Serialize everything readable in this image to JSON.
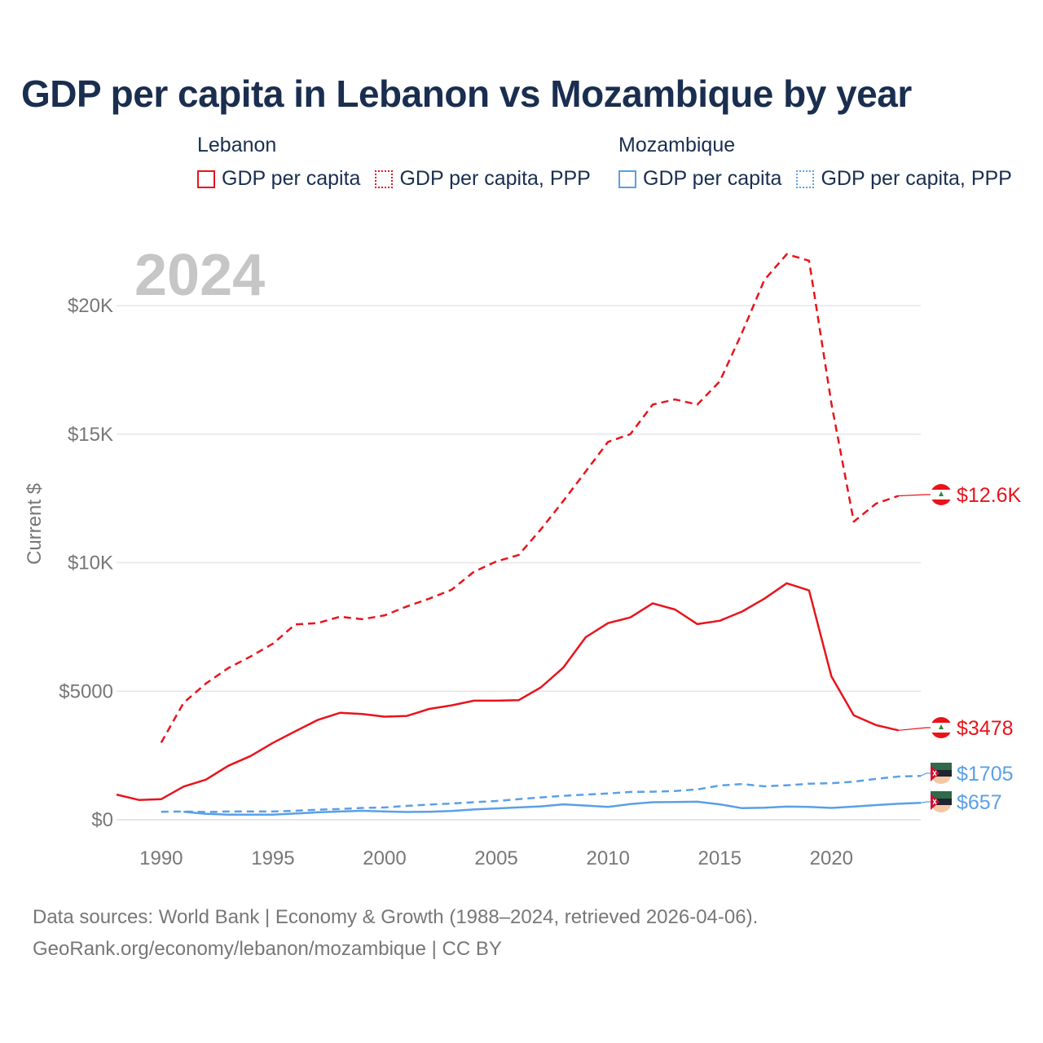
{
  "title": "GDP per capita in Lebanon vs Mozambique by year",
  "legend": {
    "groups": [
      {
        "country": "Lebanon",
        "color": "#e8141c",
        "items": [
          {
            "label": "GDP per capita",
            "style": "solid"
          },
          {
            "label": "GDP per capita, PPP",
            "style": "dotted"
          }
        ]
      },
      {
        "country": "Mozambique",
        "color": "#5aa0e6",
        "items": [
          {
            "label": "GDP per capita",
            "style": "solid"
          },
          {
            "label": "GDP per capita, PPP",
            "style": "dotted"
          }
        ]
      }
    ]
  },
  "year_watermark": "2024",
  "footer": {
    "line1": "Data sources: World Bank | Economy & Growth (1988–2024, retrieved 2026-04-06).",
    "line2": "GeoRank.org/economy/lebanon/mozambique | CC BY"
  },
  "chart_data": {
    "type": "line",
    "title": "GDP per capita in Lebanon vs Mozambique by year",
    "xlabel": "",
    "ylabel": "Current $",
    "xlim": [
      1988,
      2024
    ],
    "ylim": [
      0,
      22000
    ],
    "xticks": [
      1990,
      1995,
      2000,
      2005,
      2010,
      2015,
      2020
    ],
    "yticks": [
      {
        "value": 0,
        "label": "$0"
      },
      {
        "value": 5000,
        "label": "$5000"
      },
      {
        "value": 10000,
        "label": "$10K"
      },
      {
        "value": 15000,
        "label": "$15K"
      },
      {
        "value": 20000,
        "label": "$20K"
      }
    ],
    "grid": true,
    "series": [
      {
        "name": "Lebanon GDP per capita, PPP",
        "country": "Lebanon",
        "color": "#e8141c",
        "dash": "dashed",
        "end_label": "$12.6K",
        "x": [
          1990,
          1991,
          1992,
          1993,
          1994,
          1995,
          1996,
          1997,
          1998,
          1999,
          2000,
          2001,
          2002,
          2003,
          2004,
          2005,
          2006,
          2007,
          2008,
          2009,
          2010,
          2011,
          2012,
          2013,
          2014,
          2015,
          2016,
          2017,
          2018,
          2019,
          2020,
          2021,
          2022,
          2023
        ],
        "values": [
          3000,
          4550,
          5300,
          5900,
          6350,
          6850,
          7600,
          7650,
          7900,
          7800,
          7950,
          8300,
          8600,
          8950,
          9650,
          10050,
          10300,
          11300,
          12400,
          13550,
          14700,
          15000,
          16150,
          16350,
          16150,
          17050,
          18950,
          21000,
          22000,
          21750,
          16200,
          11600,
          12300,
          12600
        ]
      },
      {
        "name": "Lebanon GDP per capita",
        "country": "Lebanon",
        "color": "#e8141c",
        "dash": "solid",
        "end_label": "$3478",
        "x": [
          1988,
          1989,
          1990,
          1991,
          1992,
          1993,
          1994,
          1995,
          1996,
          1997,
          1998,
          1999,
          2000,
          2001,
          2002,
          2003,
          2004,
          2005,
          2006,
          2007,
          2008,
          2009,
          2010,
          2011,
          2012,
          2013,
          2014,
          2015,
          2016,
          2017,
          2018,
          2019,
          2020,
          2021,
          2022,
          2023
        ],
        "values": [
          980,
          770,
          800,
          1290,
          1560,
          2100,
          2480,
          2990,
          3440,
          3880,
          4160,
          4110,
          4010,
          4040,
          4310,
          4450,
          4630,
          4630,
          4650,
          5150,
          5920,
          7100,
          7650,
          7870,
          8420,
          8180,
          7610,
          7740,
          8100,
          8600,
          9200,
          8920,
          5580,
          4060,
          3680,
          3478
        ]
      },
      {
        "name": "Mozambique GDP per capita, PPP",
        "country": "Mozambique",
        "color": "#5aa0e6",
        "dash": "dashed",
        "end_label": "$1705",
        "x": [
          1990,
          1991,
          1992,
          1993,
          1994,
          1995,
          1996,
          1997,
          1998,
          1999,
          2000,
          2001,
          2002,
          2003,
          2004,
          2005,
          2006,
          2007,
          2008,
          2009,
          2010,
          2011,
          2012,
          2013,
          2014,
          2015,
          2016,
          2017,
          2018,
          2019,
          2020,
          2021,
          2022,
          2023,
          2024
        ],
        "values": [
          310,
          320,
          300,
          320,
          320,
          320,
          350,
          390,
          420,
          460,
          480,
          540,
          590,
          630,
          680,
          730,
          800,
          870,
          930,
          980,
          1020,
          1080,
          1090,
          1120,
          1180,
          1330,
          1390,
          1300,
          1340,
          1400,
          1420,
          1480,
          1590,
          1680,
          1705
        ]
      },
      {
        "name": "Mozambique GDP per capita",
        "country": "Mozambique",
        "color": "#5aa0e6",
        "dash": "solid",
        "end_label": "$657",
        "x": [
          1991,
          1992,
          1993,
          1994,
          1995,
          1996,
          1997,
          1998,
          1999,
          2000,
          2001,
          2002,
          2003,
          2004,
          2005,
          2006,
          2007,
          2008,
          2009,
          2010,
          2011,
          2012,
          2013,
          2014,
          2015,
          2016,
          2017,
          2018,
          2019,
          2020,
          2021,
          2022,
          2023,
          2024
        ],
        "values": [
          310,
          230,
          200,
          200,
          200,
          240,
          290,
          320,
          350,
          320,
          300,
          310,
          340,
          400,
          440,
          480,
          520,
          600,
          550,
          500,
          610,
          680,
          690,
          700,
          600,
          450,
          470,
          510,
          500,
          460,
          510,
          570,
          620,
          657
        ]
      }
    ]
  }
}
